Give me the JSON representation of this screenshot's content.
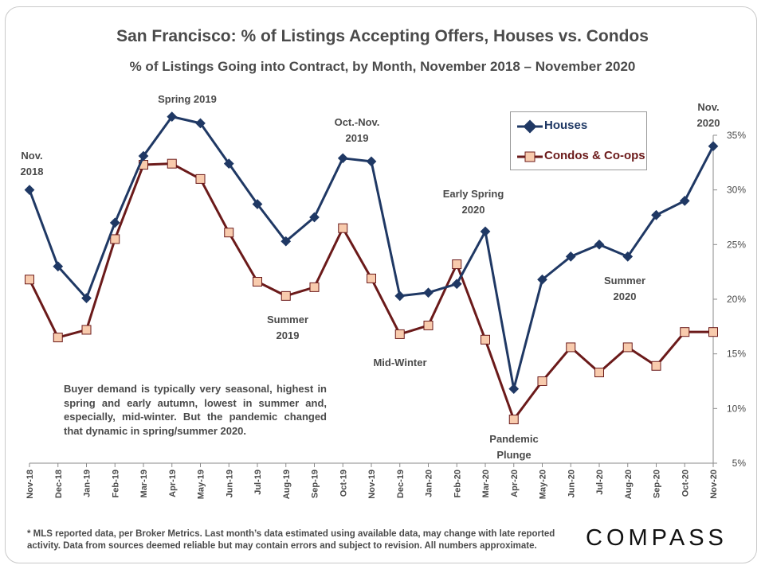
{
  "chart_data": {
    "type": "line",
    "title": "San Francisco: % of Listings Accepting Offers, Houses vs. Condos",
    "subtitle": "% of Listings Going into Contract, by Month,  November 2018 – November 2020",
    "categories": [
      "Nov-18",
      "Dec-18",
      "Jan-19",
      "Feb-19",
      "Mar-19",
      "Apr-19",
      "May-19",
      "Jun-19",
      "Jul-19",
      "Aug-19",
      "Sep-19",
      "Oct-19",
      "Nov-19",
      "Dec-19",
      "Jan-20",
      "Feb-20",
      "Mar-20",
      "Apr-20",
      "May-20",
      "Jun-20",
      "Jul-20",
      "Aug-20",
      "Sep-20",
      "Oct-20",
      "Nov-20"
    ],
    "series": [
      {
        "name": "Houses",
        "color": "#1f3864",
        "values": [
          30.0,
          23.0,
          20.1,
          27.0,
          33.1,
          36.7,
          36.1,
          32.4,
          28.7,
          25.3,
          27.5,
          32.9,
          32.6,
          20.3,
          20.6,
          21.4,
          26.2,
          11.8,
          21.8,
          23.9,
          25.0,
          23.9,
          27.7,
          29.0,
          34.0
        ]
      },
      {
        "name": "Condos & Co-ops",
        "color": "#6b1a1a",
        "marker_fill": "#f8cbad",
        "values": [
          21.8,
          16.5,
          17.2,
          25.5,
          32.3,
          32.4,
          31.0,
          26.1,
          21.6,
          20.3,
          21.1,
          26.5,
          21.9,
          16.8,
          17.6,
          23.2,
          16.3,
          9.0,
          12.5,
          15.6,
          13.3,
          15.6,
          13.9,
          17.0,
          17.0
        ]
      }
    ],
    "yticks": [
      "5%",
      "10%",
      "15%",
      "20%",
      "25%",
      "30%",
      "35%"
    ],
    "ylim": [
      5,
      37
    ],
    "legend": "top-right",
    "grid": false,
    "annotations": [
      {
        "lines": [
          "Nov.",
          "2018"
        ]
      },
      {
        "lines": [
          "Spring 2019"
        ]
      },
      {
        "lines": [
          "Oct.-Nov.",
          "2019"
        ]
      },
      {
        "lines": [
          "Summer",
          "2019"
        ]
      },
      {
        "lines": [
          "Mid-Winter"
        ]
      },
      {
        "lines": [
          "Early Spring",
          "2020"
        ]
      },
      {
        "lines": [
          "Pandemic",
          "Plunge"
        ]
      },
      {
        "lines": [
          "Summer",
          "2020"
        ]
      },
      {
        "lines": [
          "Nov.",
          "2020"
        ]
      }
    ]
  },
  "note": "Buyer demand is typically very seasonal, highest in spring and early autumn, lowest in summer and, especially, mid-winter. But the pandemic changed that dynamic in spring/summer 2020.",
  "footnote": "* MLS reported data, per Broker Metrics. Last month’s data estimated using available data, may change with late reported activity. Data from sources deemed reliable but may contain errors and subject to revision. All numbers approximate.",
  "logo": "COMPASS"
}
